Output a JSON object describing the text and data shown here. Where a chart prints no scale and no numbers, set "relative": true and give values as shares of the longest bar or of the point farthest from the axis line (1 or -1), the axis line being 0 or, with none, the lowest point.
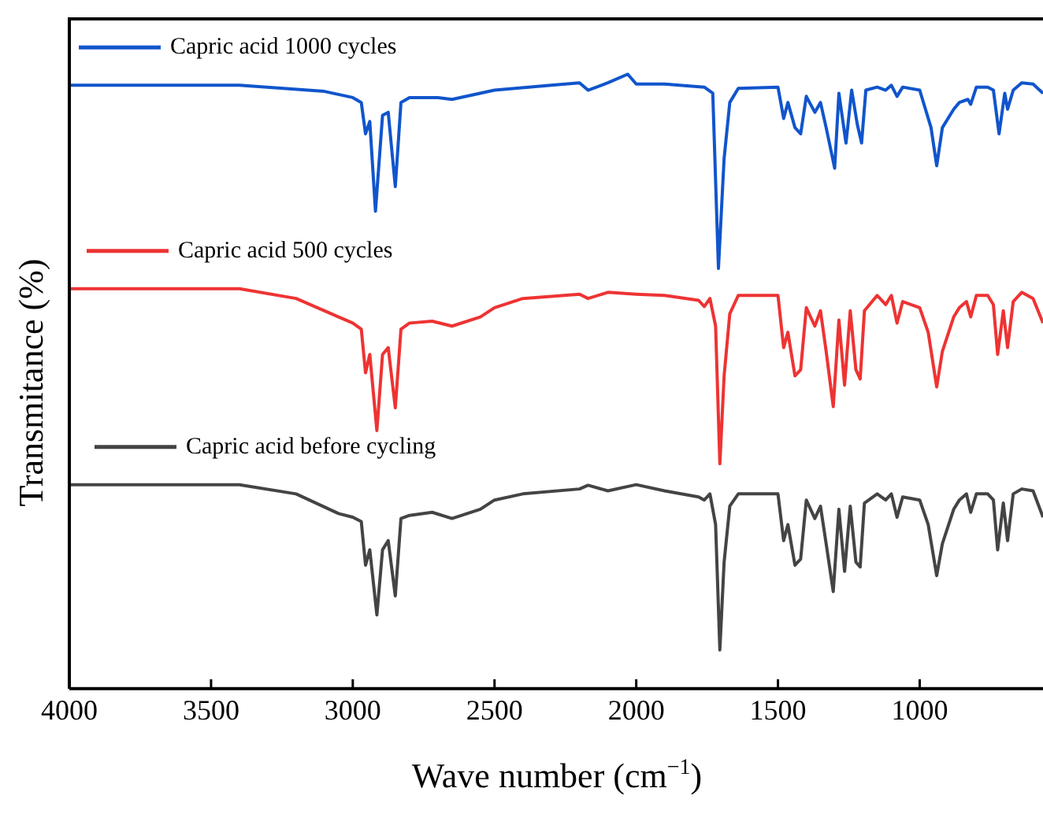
{
  "chart_data": {
    "type": "line",
    "xlabel": "Wave number (cm$^{−1}$)",
    "ylabel": "Transmitance (%)",
    "relative": true,
    "xlim": [
      4000,
      565
    ],
    "xticks": [
      4000,
      3500,
      3000,
      2500,
      2000,
      1500,
      1000
    ],
    "grid": false,
    "legend": "left",
    "tick_labels": "x",
    "series": [
      {
        "name": "Capric acid 1000 cycles",
        "color": "#1155cc",
        "x": [
          4000,
          3400,
          3100,
          3000,
          2970,
          2955,
          2940,
          2920,
          2895,
          2875,
          2850,
          2830,
          2800,
          2700,
          2650,
          2500,
          2300,
          2200,
          2170,
          2100,
          2030,
          2000,
          1900,
          1760,
          1730,
          1710,
          1690,
          1670,
          1640,
          1500,
          1480,
          1465,
          1440,
          1420,
          1400,
          1370,
          1350,
          1330,
          1300,
          1285,
          1260,
          1240,
          1220,
          1205,
          1190,
          1150,
          1120,
          1100,
          1080,
          1060,
          1000,
          960,
          940,
          920,
          880,
          860,
          830,
          820,
          800,
          760,
          740,
          720,
          700,
          690,
          670,
          640,
          600,
          565
        ],
        "values": [
          0.982,
          0.982,
          0.972,
          0.962,
          0.954,
          0.903,
          0.923,
          0.777,
          0.933,
          0.938,
          0.817,
          0.954,
          0.962,
          0.962,
          0.959,
          0.974,
          0.982,
          0.986,
          0.974,
          0.986,
          1.0,
          0.984,
          0.984,
          0.979,
          0.969,
          0.684,
          0.863,
          0.954,
          0.977,
          0.979,
          0.928,
          0.954,
          0.913,
          0.903,
          0.964,
          0.938,
          0.954,
          0.913,
          0.847,
          0.969,
          0.888,
          0.974,
          0.918,
          0.888,
          0.974,
          0.979,
          0.974,
          0.982,
          0.964,
          0.979,
          0.974,
          0.913,
          0.851,
          0.913,
          0.943,
          0.954,
          0.959,
          0.951,
          0.979,
          0.979,
          0.974,
          0.903,
          0.969,
          0.943,
          0.974,
          0.986,
          0.984,
          0.969
        ]
      },
      {
        "name": "Capric acid 500 cycles",
        "color": "#ee3333",
        "x": [
          4000,
          3400,
          3200,
          3050,
          3000,
          2970,
          2955,
          2940,
          2915,
          2895,
          2875,
          2850,
          2830,
          2800,
          2720,
          2650,
          2550,
          2500,
          2400,
          2200,
          2170,
          2100,
          2000,
          1900,
          1780,
          1760,
          1740,
          1720,
          1705,
          1690,
          1670,
          1640,
          1500,
          1480,
          1465,
          1440,
          1420,
          1400,
          1370,
          1350,
          1330,
          1305,
          1285,
          1265,
          1245,
          1225,
          1210,
          1195,
          1150,
          1120,
          1100,
          1080,
          1060,
          1000,
          970,
          940,
          920,
          880,
          860,
          835,
          820,
          800,
          760,
          740,
          725,
          705,
          690,
          670,
          640,
          600,
          565
        ],
        "values": [
          0.651,
          0.651,
          0.635,
          0.605,
          0.595,
          0.585,
          0.514,
          0.544,
          0.42,
          0.544,
          0.555,
          0.457,
          0.585,
          0.595,
          0.598,
          0.59,
          0.605,
          0.62,
          0.635,
          0.642,
          0.635,
          0.645,
          0.642,
          0.64,
          0.632,
          0.622,
          0.635,
          0.59,
          0.366,
          0.509,
          0.61,
          0.64,
          0.64,
          0.555,
          0.58,
          0.509,
          0.519,
          0.62,
          0.59,
          0.615,
          0.549,
          0.459,
          0.6,
          0.494,
          0.615,
          0.519,
          0.504,
          0.615,
          0.64,
          0.625,
          0.64,
          0.595,
          0.63,
          0.62,
          0.58,
          0.491,
          0.549,
          0.605,
          0.62,
          0.63,
          0.605,
          0.64,
          0.64,
          0.625,
          0.544,
          0.615,
          0.555,
          0.63,
          0.645,
          0.635,
          0.595
        ]
      },
      {
        "name": "Capric acid before cycling",
        "color": "#444444",
        "x": [
          4000,
          3400,
          3200,
          3050,
          3000,
          2970,
          2955,
          2940,
          2915,
          2895,
          2875,
          2850,
          2830,
          2800,
          2720,
          2650,
          2550,
          2500,
          2400,
          2200,
          2170,
          2100,
          2000,
          1900,
          1780,
          1760,
          1740,
          1720,
          1705,
          1690,
          1670,
          1640,
          1500,
          1480,
          1465,
          1440,
          1420,
          1400,
          1370,
          1350,
          1330,
          1305,
          1285,
          1265,
          1245,
          1225,
          1210,
          1195,
          1150,
          1120,
          1100,
          1080,
          1060,
          1000,
          970,
          940,
          920,
          880,
          860,
          835,
          820,
          800,
          760,
          740,
          725,
          705,
          690,
          670,
          640,
          600,
          565
        ],
        "values": [
          0.332,
          0.332,
          0.317,
          0.285,
          0.279,
          0.272,
          0.201,
          0.226,
          0.12,
          0.226,
          0.241,
          0.151,
          0.277,
          0.282,
          0.287,
          0.277,
          0.292,
          0.307,
          0.317,
          0.325,
          0.331,
          0.322,
          0.332,
          0.322,
          0.312,
          0.307,
          0.317,
          0.267,
          0.063,
          0.206,
          0.297,
          0.317,
          0.317,
          0.241,
          0.267,
          0.201,
          0.211,
          0.307,
          0.277,
          0.297,
          0.236,
          0.158,
          0.292,
          0.191,
          0.297,
          0.206,
          0.198,
          0.302,
          0.317,
          0.307,
          0.317,
          0.279,
          0.312,
          0.307,
          0.267,
          0.184,
          0.236,
          0.292,
          0.307,
          0.317,
          0.287,
          0.317,
          0.317,
          0.307,
          0.226,
          0.302,
          0.241,
          0.317,
          0.325,
          0.322,
          0.279
        ]
      }
    ]
  }
}
